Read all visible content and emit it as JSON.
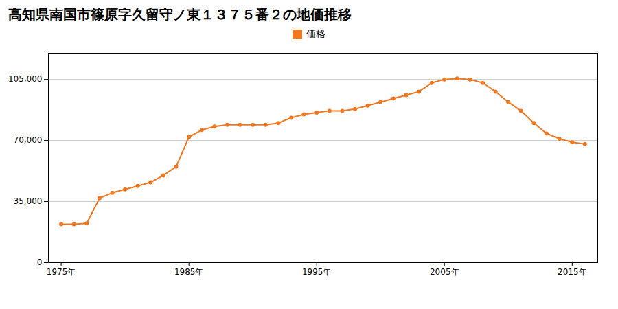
{
  "chart_data": {
    "type": "line",
    "title": "高知県南国市篠原字久留守ノ東１３７５番２の地価推移",
    "x": [
      1975,
      1976,
      1977,
      1978,
      1979,
      1980,
      1981,
      1982,
      1983,
      1984,
      1985,
      1986,
      1987,
      1988,
      1989,
      1990,
      1991,
      1992,
      1993,
      1994,
      1995,
      1996,
      1997,
      1998,
      1999,
      2000,
      2001,
      2002,
      2003,
      2004,
      2005,
      2006,
      2007,
      2008,
      2009,
      2010,
      2011,
      2012,
      2013,
      2014,
      2015,
      2016
    ],
    "series": [
      {
        "name": "価格",
        "color": "#f07820",
        "marker": "circle",
        "values": [
          22000,
          22000,
          22500,
          37000,
          40000,
          42000,
          44000,
          46000,
          50000,
          55000,
          72000,
          76000,
          78000,
          79000,
          79000,
          79000,
          79000,
          80000,
          83000,
          85000,
          86000,
          87000,
          87000,
          88000,
          90000,
          92000,
          94000,
          96000,
          98000,
          103000,
          105000,
          105500,
          105000,
          103000,
          98000,
          92000,
          87000,
          80000,
          74000,
          71000,
          69000,
          68000
        ]
      }
    ],
    "xlim": [
      1974,
      2017
    ],
    "xticks": [
      {
        "value": 1975,
        "label": "1975年"
      },
      {
        "value": 1985,
        "label": "1985年"
      },
      {
        "value": 1995,
        "label": "1995年"
      },
      {
        "value": 2005,
        "label": "2005年"
      },
      {
        "value": 2015,
        "label": "2015年"
      }
    ],
    "ylim": [
      0,
      120000
    ],
    "yticks": [
      0,
      {
        "value": 35000,
        "label": "35,000"
      },
      {
        "value": 70000,
        "label": "70,000"
      },
      {
        "value": 105000,
        "label": "105,000"
      }
    ],
    "grid": "y",
    "legend": "top"
  }
}
